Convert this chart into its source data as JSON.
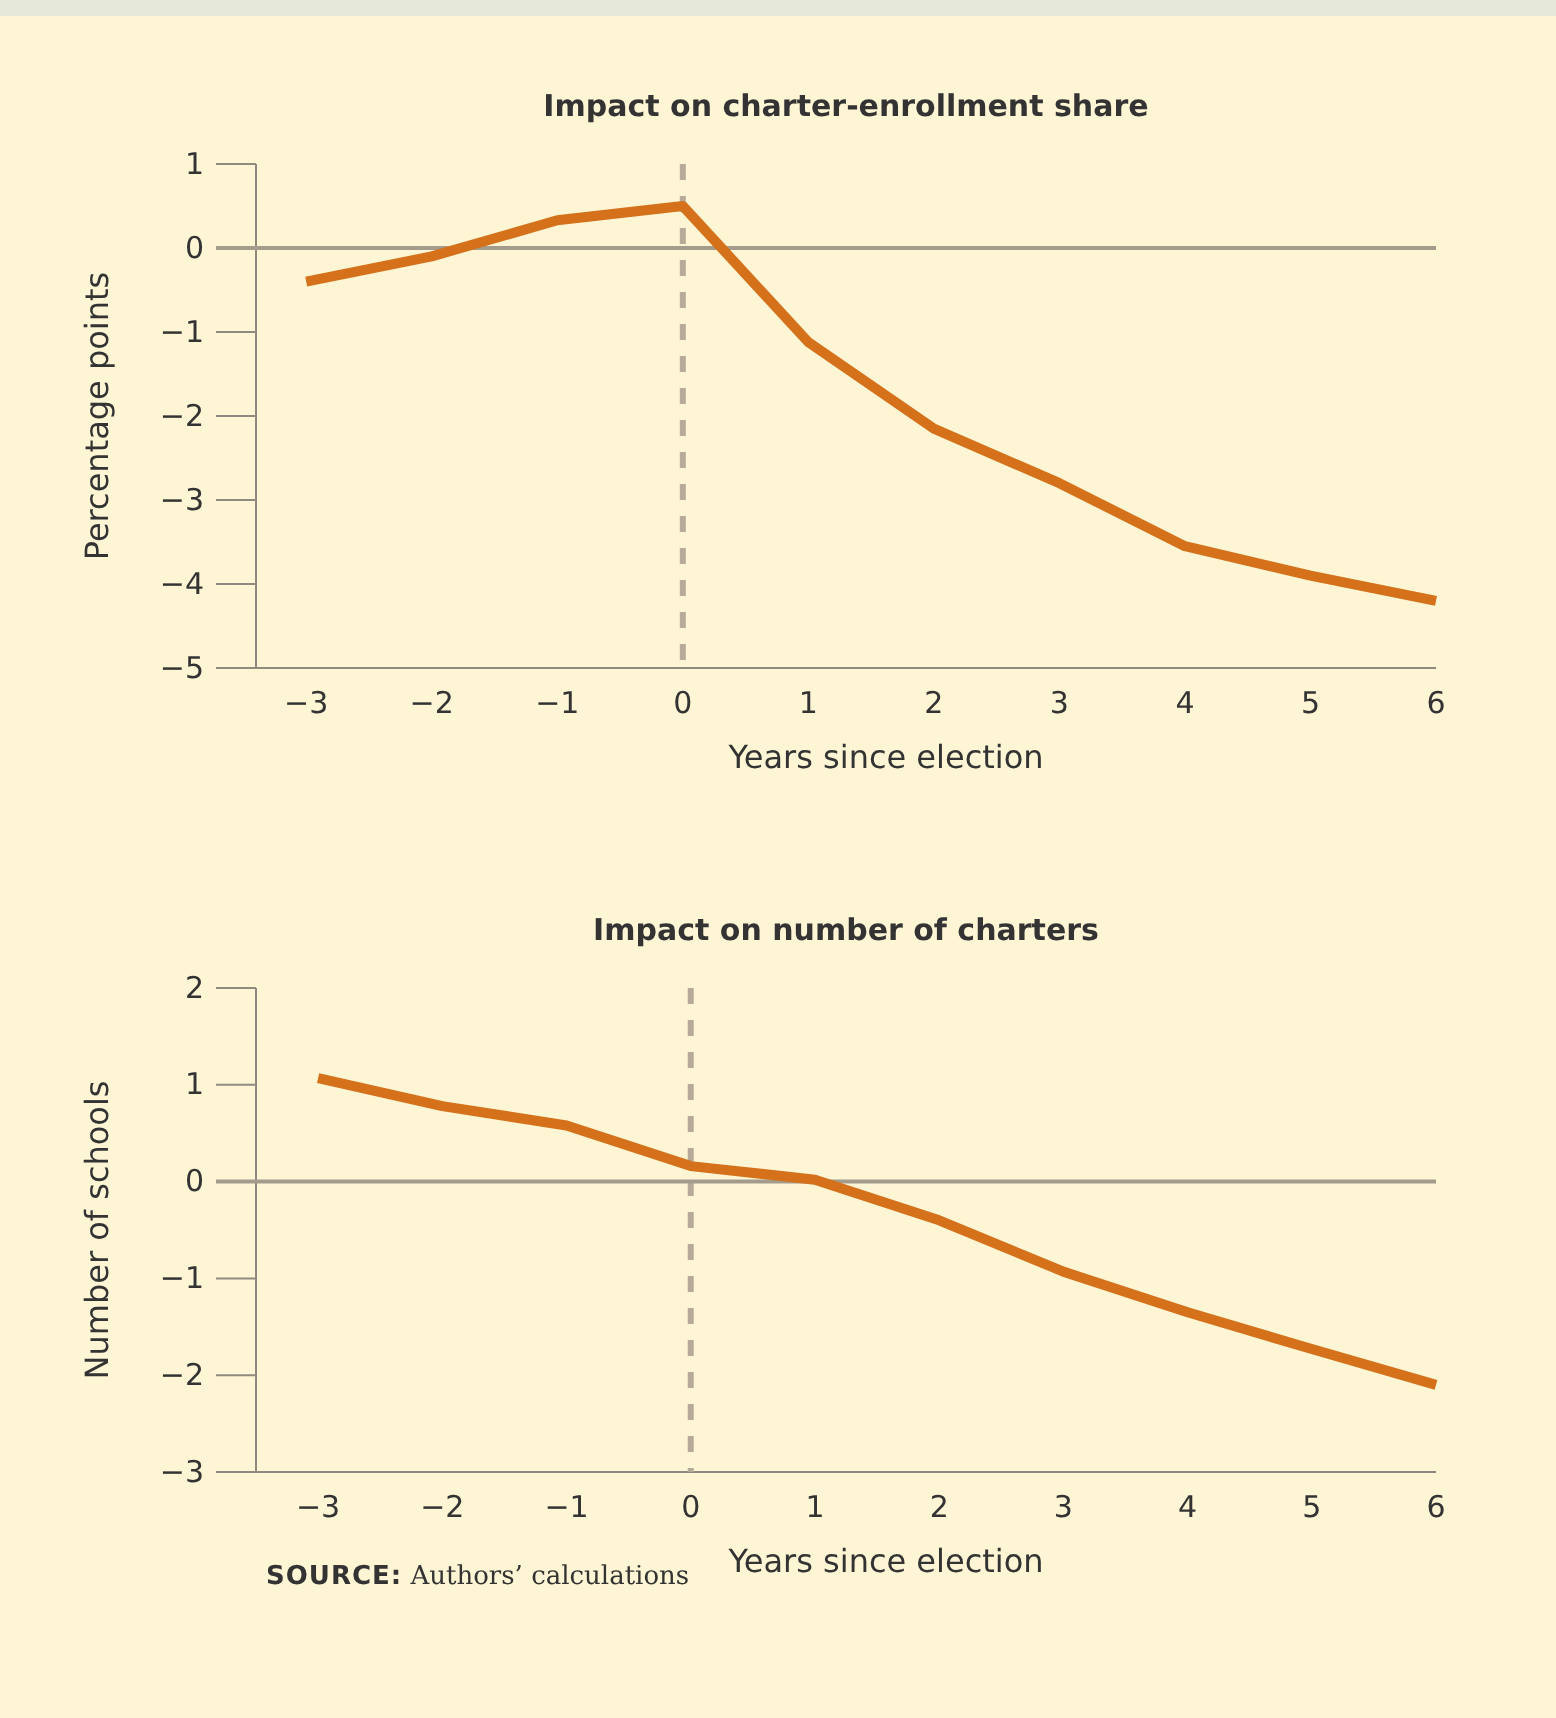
{
  "chart_data": [
    {
      "type": "line",
      "title": "Impact on charter-enrollment share",
      "xlabel": "Years since election",
      "ylabel": "Percentage points",
      "x": [
        -3,
        -2,
        -1,
        0,
        1,
        2,
        3,
        4,
        5,
        6
      ],
      "series": [
        {
          "color": "#d4711a",
          "values": [
            -0.4,
            -0.1,
            0.33,
            0.5,
            -1.12,
            -2.15,
            -2.8,
            -3.55,
            -3.9,
            -4.2
          ]
        }
      ],
      "xlim": [
        -3.4,
        6
      ],
      "xticks": [
        {
          "value": -3,
          "label": "−3"
        },
        {
          "value": -2,
          "label": "−2"
        },
        {
          "value": -1,
          "label": "−1"
        },
        0,
        1,
        2,
        3,
        4,
        5,
        6
      ],
      "ylim": [
        -5,
        1
      ],
      "yticks": [
        {
          "value": -5,
          "label": "−5"
        },
        {
          "value": -4,
          "label": "−4"
        },
        {
          "value": -3,
          "label": "−3"
        },
        {
          "value": -2,
          "label": "−2"
        },
        {
          "value": -1,
          "label": "−1"
        },
        0,
        1
      ],
      "ref_lines": [
        {
          "axis": "x",
          "value": 0,
          "color": "#b5ab98",
          "line_style": "dashed"
        },
        {
          "axis": "y",
          "value": 0,
          "color": "#a39c8c",
          "line_style": "solid"
        }
      ],
      "grid": false,
      "marker": "none",
      "line_style": "solid"
    },
    {
      "type": "line",
      "title": "Impact on number of charters",
      "xlabel": "Years since election",
      "ylabel": "Number of schools",
      "x": [
        -3,
        -2,
        -1,
        0,
        1,
        2,
        3,
        4,
        5,
        6
      ],
      "series": [
        {
          "color": "#d4711a",
          "values": [
            1.07,
            0.78,
            0.58,
            0.16,
            0.02,
            -0.4,
            -0.93,
            -1.35,
            -1.73,
            -2.1
          ]
        }
      ],
      "xlim": [
        -3.5,
        6
      ],
      "xticks": [
        {
          "value": -3,
          "label": "−3"
        },
        {
          "value": -2,
          "label": "−2"
        },
        {
          "value": -1,
          "label": "−1"
        },
        0,
        1,
        2,
        3,
        4,
        5,
        6
      ],
      "ylim": [
        -3,
        2
      ],
      "yticks": [
        {
          "value": -3,
          "label": "−3"
        },
        {
          "value": -2,
          "label": "−2"
        },
        {
          "value": -1,
          "label": "−1"
        },
        0,
        1,
        2
      ],
      "ref_lines": [
        {
          "axis": "x",
          "value": 0,
          "color": "#b5ab98",
          "line_style": "dashed"
        },
        {
          "axis": "y",
          "value": 0,
          "color": "#a39c8c",
          "line_style": "solid"
        }
      ],
      "grid": false,
      "marker": "none",
      "line_style": "solid",
      "annotations": [
        "SOURCE: Authors’ calculations"
      ]
    }
  ]
}
